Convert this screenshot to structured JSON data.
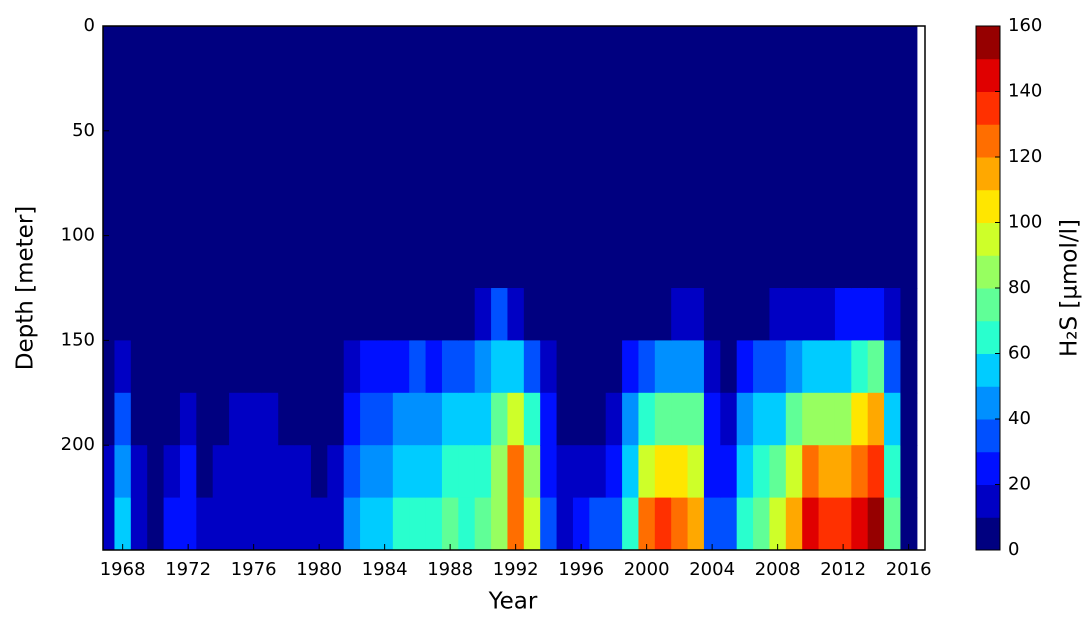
{
  "chart_data": {
    "type": "contourf",
    "x_label": "Year",
    "y_label": "Depth [meter]",
    "colorbar_label": "H₂S [µmol/l]",
    "x": [
      1967,
      1968,
      1969,
      1970,
      1971,
      1972,
      1973,
      1974,
      1975,
      1976,
      1977,
      1978,
      1979,
      1980,
      1981,
      1982,
      1983,
      1984,
      1985,
      1986,
      1987,
      1988,
      1989,
      1990,
      1991,
      1992,
      1993,
      1994,
      1995,
      1996,
      1997,
      1998,
      1999,
      2000,
      2001,
      2002,
      2003,
      2004,
      2005,
      2006,
      2007,
      2008,
      2009,
      2010,
      2011,
      2012,
      2013,
      2014,
      2015,
      2016
    ],
    "y_edges": [
      0,
      125,
      150,
      175,
      200,
      225,
      250
    ],
    "values": [
      [
        0,
        0,
        0,
        5,
        10,
        15
      ],
      [
        0,
        0,
        15,
        30,
        40,
        55
      ],
      [
        0,
        0,
        0,
        5,
        10,
        15
      ],
      [
        0,
        0,
        0,
        0,
        0,
        5
      ],
      [
        0,
        0,
        0,
        5,
        15,
        20
      ],
      [
        0,
        0,
        5,
        15,
        20,
        25
      ],
      [
        0,
        0,
        0,
        0,
        5,
        10
      ],
      [
        0,
        0,
        0,
        5,
        10,
        15
      ],
      [
        0,
        0,
        0,
        10,
        10,
        15
      ],
      [
        0,
        0,
        0,
        15,
        15,
        15
      ],
      [
        0,
        0,
        0,
        10,
        15,
        15
      ],
      [
        0,
        0,
        0,
        0,
        10,
        15
      ],
      [
        0,
        0,
        0,
        5,
        10,
        15
      ],
      [
        0,
        0,
        0,
        5,
        5,
        10
      ],
      [
        0,
        0,
        0,
        5,
        10,
        15
      ],
      [
        0,
        0,
        15,
        25,
        35,
        45
      ],
      [
        0,
        5,
        20,
        30,
        45,
        55
      ],
      [
        0,
        0,
        20,
        30,
        40,
        50
      ],
      [
        0,
        5,
        25,
        40,
        50,
        60
      ],
      [
        0,
        5,
        30,
        45,
        55,
        60
      ],
      [
        0,
        0,
        25,
        40,
        50,
        60
      ],
      [
        0,
        5,
        35,
        50,
        60,
        70
      ],
      [
        0,
        5,
        30,
        50,
        60,
        65
      ],
      [
        0,
        15,
        40,
        55,
        65,
        70
      ],
      [
        0,
        30,
        55,
        70,
        80,
        80
      ],
      [
        0,
        10,
        50,
        90,
        120,
        120
      ],
      [
        0,
        5,
        30,
        60,
        80,
        90
      ],
      [
        0,
        0,
        10,
        20,
        25,
        30
      ],
      [
        0,
        0,
        0,
        5,
        10,
        15
      ],
      [
        0,
        0,
        0,
        5,
        10,
        20
      ],
      [
        0,
        0,
        0,
        5,
        15,
        30
      ],
      [
        0,
        0,
        0,
        10,
        20,
        30
      ],
      [
        0,
        5,
        20,
        40,
        55,
        65
      ],
      [
        0,
        5,
        30,
        60,
        90,
        120
      ],
      [
        0,
        5,
        40,
        70,
        100,
        130
      ],
      [
        0,
        10,
        45,
        75,
        100,
        125
      ],
      [
        0,
        10,
        40,
        70,
        90,
        110
      ],
      [
        0,
        0,
        10,
        20,
        25,
        30
      ],
      [
        0,
        0,
        5,
        10,
        20,
        30
      ],
      [
        0,
        5,
        20,
        40,
        55,
        65
      ],
      [
        0,
        5,
        30,
        50,
        65,
        75
      ],
      [
        0,
        10,
        35,
        55,
        75,
        90
      ],
      [
        0,
        10,
        45,
        70,
        95,
        115
      ],
      [
        0,
        15,
        50,
        80,
        120,
        140
      ],
      [
        0,
        15,
        50,
        80,
        110,
        135
      ],
      [
        0,
        20,
        50,
        85,
        110,
        130
      ],
      [
        0,
        20,
        60,
        100,
        120,
        140
      ],
      [
        0,
        25,
        75,
        110,
        130,
        150
      ],
      [
        0,
        10,
        30,
        50,
        60,
        70
      ],
      [
        0,
        0,
        0,
        0,
        0,
        0
      ]
    ],
    "xlim": [
      1966.8,
      2017.0
    ],
    "ylim": [
      0,
      250
    ],
    "invert_y": true,
    "xticks": [
      1968,
      1972,
      1976,
      1980,
      1984,
      1988,
      1992,
      1996,
      2000,
      2004,
      2008,
      2012,
      2016
    ],
    "yticks": [
      0,
      50,
      100,
      150,
      200
    ],
    "levels": [
      0,
      10,
      20,
      30,
      40,
      50,
      60,
      70,
      80,
      90,
      100,
      110,
      120,
      130,
      140,
      150,
      160
    ],
    "colorbar_ticks": [
      0,
      20,
      40,
      60,
      80,
      100,
      120,
      140,
      160
    ],
    "colors": [
      "#000080",
      "#0000c4",
      "#0010ff",
      "#0050ff",
      "#0090ff",
      "#00ccff",
      "#29ffce",
      "#60ff97",
      "#97ff60",
      "#ceff29",
      "#ffe600",
      "#ffa800",
      "#ff6e00",
      "#ff3000",
      "#e00000",
      "#960000"
    ]
  }
}
